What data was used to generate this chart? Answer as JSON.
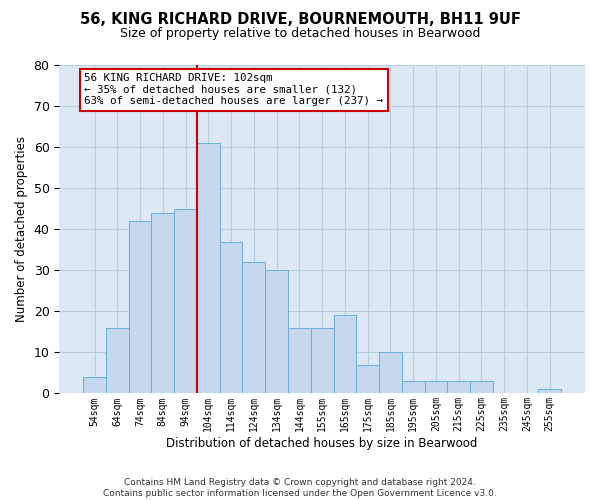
{
  "title": "56, KING RICHARD DRIVE, BOURNEMOUTH, BH11 9UF",
  "subtitle": "Size of property relative to detached houses in Bearwood",
  "xlabel": "Distribution of detached houses by size in Bearwood",
  "ylabel": "Number of detached properties",
  "bar_labels": [
    "54sqm",
    "64sqm",
    "74sqm",
    "84sqm",
    "94sqm",
    "104sqm",
    "114sqm",
    "124sqm",
    "134sqm",
    "144sqm",
    "155sqm",
    "165sqm",
    "175sqm",
    "185sqm",
    "195sqm",
    "205sqm",
    "215sqm",
    "225sqm",
    "235sqm",
    "245sqm",
    "255sqm"
  ],
  "bar_heights": [
    4,
    16,
    42,
    44,
    45,
    61,
    37,
    32,
    30,
    16,
    16,
    19,
    7,
    10,
    3,
    3,
    3,
    3,
    0,
    0,
    1
  ],
  "bar_color": "#c5d8ed",
  "bar_edge_color": "#6baed6",
  "vline_color": "#cc0000",
  "vline_index": 4.5,
  "annotation_text": "56 KING RICHARD DRIVE: 102sqm\n← 35% of detached houses are smaller (132)\n63% of semi-detached houses are larger (237) →",
  "ylim": [
    0,
    80
  ],
  "yticks": [
    0,
    10,
    20,
    30,
    40,
    50,
    60,
    70,
    80
  ],
  "grid_color": "#b8cfe0",
  "plot_bg_color": "#dce9f5",
  "footer_line1": "Contains HM Land Registry data © Crown copyright and database right 2024.",
  "footer_line2": "Contains public sector information licensed under the Open Government Licence v3.0."
}
